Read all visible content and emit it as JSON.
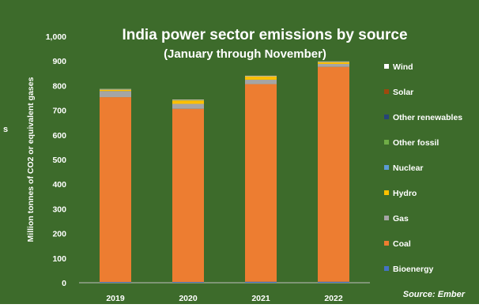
{
  "chart_data": {
    "type": "bar",
    "stacked": true,
    "title": "India power sector emissions by source",
    "subtitle": "(January through November)",
    "ylabel": "Million tonnes of CO2 or equivalent gases",
    "xlabel": "",
    "source": "Source: Ember",
    "left_edge_glyph": "s",
    "ylim": [
      0,
      1000
    ],
    "yticks": [
      "0",
      "100",
      "200",
      "300",
      "400",
      "500",
      "600",
      "700",
      "800",
      "900",
      "1,000"
    ],
    "categories": [
      "2019",
      "2020",
      "2021",
      "2022"
    ],
    "background": "#3d6b2b",
    "series": [
      {
        "name": "Bioenergy",
        "color": "#4472c4",
        "values": [
          3,
          3,
          4,
          4
        ]
      },
      {
        "name": "Coal",
        "color": "#ed7d31",
        "values": [
          750,
          703,
          802,
          872
        ]
      },
      {
        "name": "Gas",
        "color": "#a5a5a5",
        "values": [
          25,
          20,
          18,
          12
        ]
      },
      {
        "name": "Hydro",
        "color": "#ffc000",
        "values": [
          5,
          14,
          13,
          7
        ]
      },
      {
        "name": "Nuclear",
        "color": "#5b9bd5",
        "values": [
          0,
          0,
          0,
          0
        ]
      },
      {
        "name": "Other fossil",
        "color": "#70ad47",
        "values": [
          1,
          1,
          1,
          1
        ]
      },
      {
        "name": "Other renewables",
        "color": "#264478",
        "values": [
          0,
          0,
          0,
          0
        ]
      },
      {
        "name": "Solar",
        "color": "#9e480e",
        "values": [
          1,
          1,
          1,
          1
        ]
      },
      {
        "name": "Wind",
        "color": "#ffffff",
        "values": [
          1,
          1,
          1,
          1
        ]
      }
    ],
    "legend_placement": "right",
    "grid": false
  }
}
